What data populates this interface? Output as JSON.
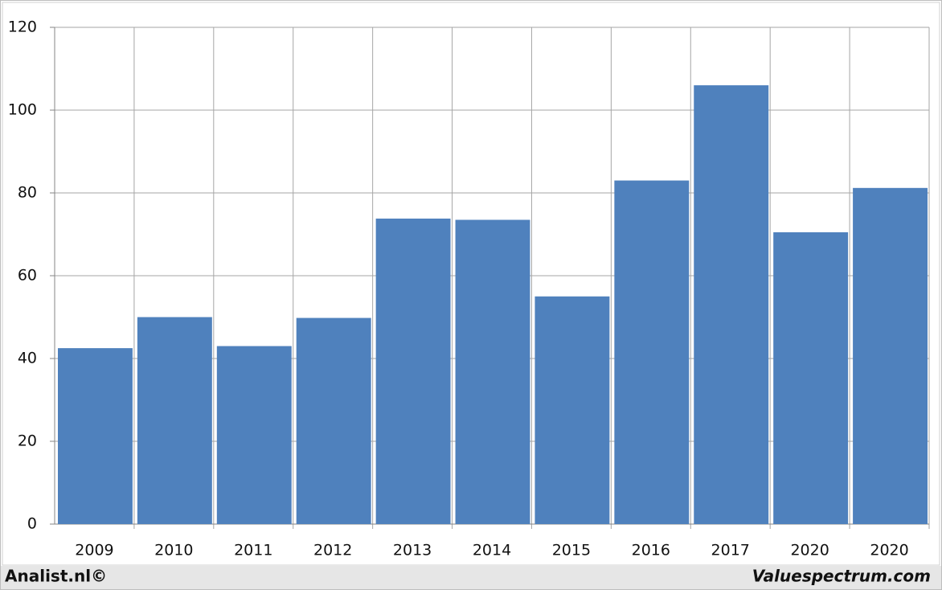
{
  "chart_data": {
    "type": "bar",
    "categories": [
      "2009",
      "2010",
      "2011",
      "2012",
      "2013",
      "2014",
      "2015",
      "2016",
      "2017",
      "2020",
      "2020"
    ],
    "values": [
      42.5,
      50,
      43,
      49.8,
      73.8,
      73.5,
      55,
      83,
      106,
      70.5,
      81.2
    ],
    "color": "#4f81bd",
    "ylim": [
      0,
      120
    ],
    "yticks": [
      0,
      20,
      40,
      60,
      80,
      100,
      120
    ],
    "grid": true,
    "credits": [
      "Analist.nl©",
      "Valuespectrum.com"
    ]
  }
}
